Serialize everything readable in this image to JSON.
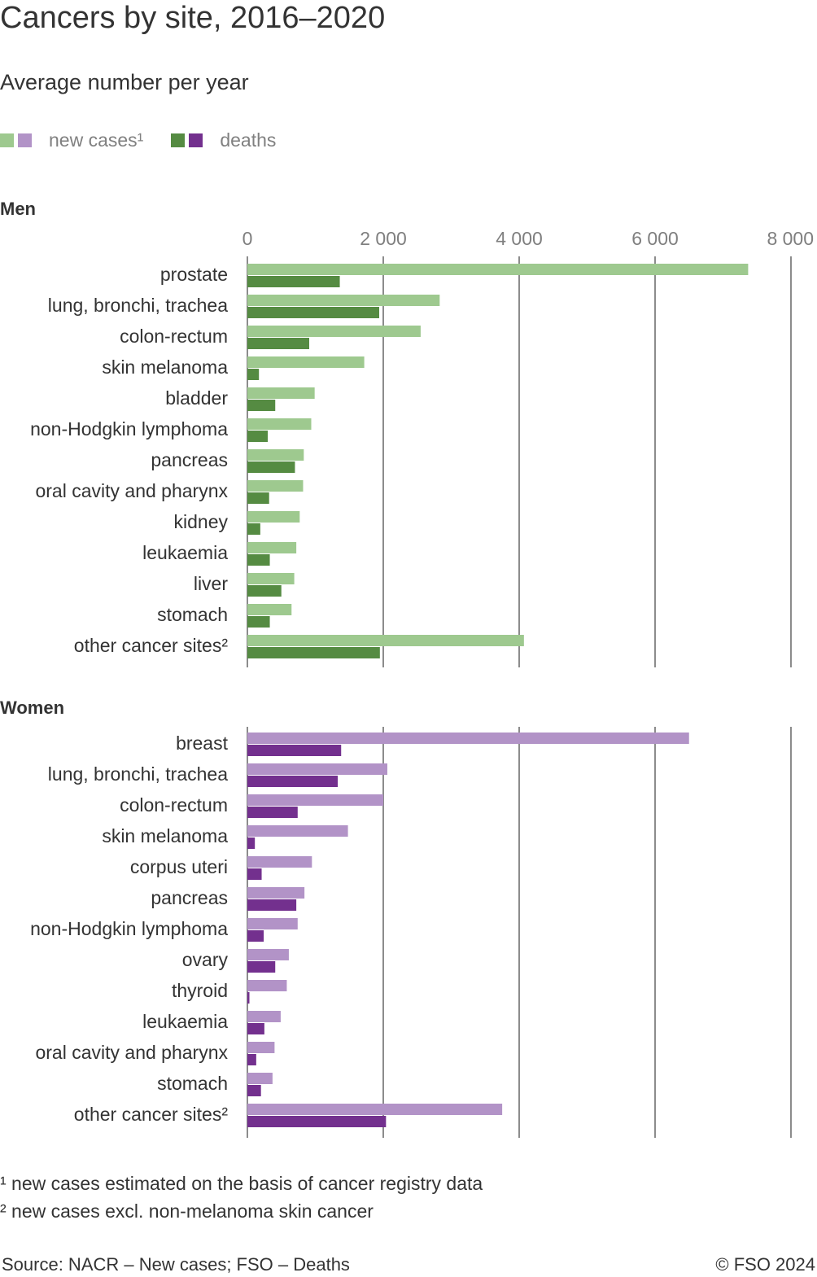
{
  "title": "Cancers by site, 2016–2020",
  "subtitle": "Average number per year",
  "legend": {
    "new_cases": "new cases¹",
    "deaths": "deaths",
    "colors": {
      "men_new": "#9ec98f",
      "men_deaths": "#558b42",
      "women_new": "#b293c7",
      "women_deaths": "#73308e"
    }
  },
  "chart_data": [
    {
      "type": "bar",
      "orientation": "horizontal",
      "title": "Men",
      "categories": [
        "prostate",
        "lung, bronchi, trachea",
        "colon-rectum",
        "skin melanoma",
        "bladder",
        "non-Hodgkin lymphoma",
        "pancreas",
        "oral cavity and pharynx",
        "kidney",
        "leukaemia",
        "liver",
        "stomach",
        "other cancer sites²"
      ],
      "series": [
        {
          "name": "new cases¹",
          "color": "#9ec98f",
          "values": [
            7370,
            2830,
            2550,
            1720,
            990,
            940,
            830,
            820,
            770,
            720,
            690,
            650,
            4070
          ]
        },
        {
          "name": "deaths",
          "color": "#558b42",
          "values": [
            1360,
            1940,
            910,
            170,
            410,
            300,
            700,
            320,
            190,
            330,
            500,
            330,
            1950
          ]
        }
      ],
      "xlim": [
        0,
        8000
      ],
      "ticks": [
        0,
        2000,
        4000,
        6000,
        8000
      ],
      "tick_labels": [
        "0",
        "2 000",
        "4 000",
        "6 000",
        "8 000"
      ]
    },
    {
      "type": "bar",
      "orientation": "horizontal",
      "title": "Women",
      "categories": [
        "breast",
        "lung, bronchi, trachea",
        "colon-rectum",
        "skin melanoma",
        "corpus uteri",
        "pancreas",
        "non-Hodgkin lymphoma",
        "ovary",
        "thyroid",
        "leukaemia",
        "oral cavity and pharynx",
        "stomach",
        "other cancer sites²"
      ],
      "series": [
        {
          "name": "new cases¹",
          "color": "#b293c7",
          "values": [
            6500,
            2060,
            2000,
            1480,
            950,
            840,
            740,
            610,
            580,
            490,
            400,
            370,
            3750
          ]
        },
        {
          "name": "deaths",
          "color": "#73308e",
          "values": [
            1380,
            1330,
            740,
            110,
            210,
            720,
            240,
            410,
            30,
            250,
            130,
            200,
            2040
          ]
        }
      ],
      "xlim": [
        0,
        8000
      ],
      "ticks": [
        0,
        2000,
        4000,
        6000,
        8000
      ]
    }
  ],
  "footnotes": [
    "¹ new cases estimated on the basis of cancer registry data",
    "² new cases excl. non-melanoma skin cancer"
  ],
  "source": "Source: NACR – New cases; FSO – Deaths",
  "copyright": "© FSO 2024"
}
